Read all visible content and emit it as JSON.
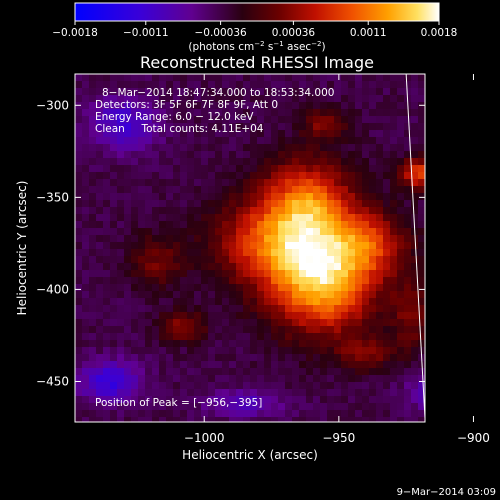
{
  "chart_data": {
    "type": "heatmap",
    "title": "Reconstructed RHESSI Image",
    "xlabel": "Heliocentric X (arcsec)",
    "ylabel": "Heliocentric Y (arcsec)",
    "xlim": [
      -1048,
      -918
    ],
    "ylim": [
      -472,
      -283
    ],
    "x_ticks": [
      -1000,
      -950,
      -900
    ],
    "x_tick_labels": [
      "−1000",
      "−950",
      "−900"
    ],
    "y_ticks": [
      -300,
      -350,
      -400,
      -450
    ],
    "y_tick_labels": [
      "−300",
      "−350",
      "−400",
      "−450"
    ],
    "colorbar": {
      "range": [
        -0.0018,
        0.0018
      ],
      "ticks": [
        -0.0018,
        -0.0011,
        -0.00036,
        0.00036,
        0.0011,
        0.0018
      ],
      "tick_labels": [
        "−0.0018",
        "−0.0011",
        "−0.00036",
        "0.00036",
        "0.0011",
        "0.0018"
      ],
      "units_prefix": "(photons cm",
      "units_exp1": "−2",
      "units_mid1": " s",
      "units_exp2": "−1",
      "units_mid2": " asec",
      "units_exp3": "−2",
      "units_suffix": ")"
    },
    "annotations": {
      "time_range": "8−Mar−2014 18:47:34.000 to 18:53:34.000",
      "detectors": "Detectors: 3F 5F 6F 7F 8F 9F, Att 0",
      "energy": "Energy Range: 6.0 − 12.0 keV",
      "method": "Clean     Total counts: 4.11E+04",
      "peak": "Position of Peak = [−956,−395]"
    },
    "peak": {
      "x": -956,
      "y": -395
    },
    "sources": [
      {
        "x": -956,
        "y": -395,
        "sx": 14,
        "sy": 20,
        "amp": 0.00175
      },
      {
        "x": -962,
        "y": -352,
        "sx": 12,
        "sy": 16,
        "amp": 0.00125
      },
      {
        "x": -975,
        "y": -375,
        "sx": 16,
        "sy": 16,
        "amp": 0.00105
      },
      {
        "x": -938,
        "y": -375,
        "sx": 10,
        "sy": 12,
        "amp": 0.0008
      },
      {
        "x": -920,
        "y": -337,
        "sx": 5,
        "sy": 6,
        "amp": 0.0012
      },
      {
        "x": -1008,
        "y": -420,
        "sx": 6,
        "sy": 6,
        "amp": 0.0007
      },
      {
        "x": -1018,
        "y": -385,
        "sx": 7,
        "sy": 10,
        "amp": 0.00055
      },
      {
        "x": -955,
        "y": -310,
        "sx": 6,
        "sy": 6,
        "amp": 0.00065
      },
      {
        "x": -940,
        "y": -435,
        "sx": 7,
        "sy": 6,
        "amp": 0.0006
      },
      {
        "x": -923,
        "y": -415,
        "sx": 5,
        "sy": 14,
        "amp": 0.00055
      },
      {
        "x": -1030,
        "y": -310,
        "sx": 9,
        "sy": 10,
        "amp": -0.00075
      },
      {
        "x": -1035,
        "y": -450,
        "sx": 8,
        "sy": 8,
        "amp": -0.00085
      },
      {
        "x": -912,
        "y": -455,
        "sx": 8,
        "sy": 8,
        "amp": -0.0007
      },
      {
        "x": -985,
        "y": -462,
        "sx": 10,
        "sy": 5,
        "amp": -0.0006
      },
      {
        "x": -900,
        "y": -300,
        "sx": 8,
        "sy": 6,
        "amp": -0.00055
      }
    ],
    "background": -0.00035,
    "limb_line": {
      "x1": -925,
      "y1": -283,
      "x2": -918,
      "y2": -470
    }
  },
  "footer": {
    "date": "9−Mar−2014 03:09"
  }
}
